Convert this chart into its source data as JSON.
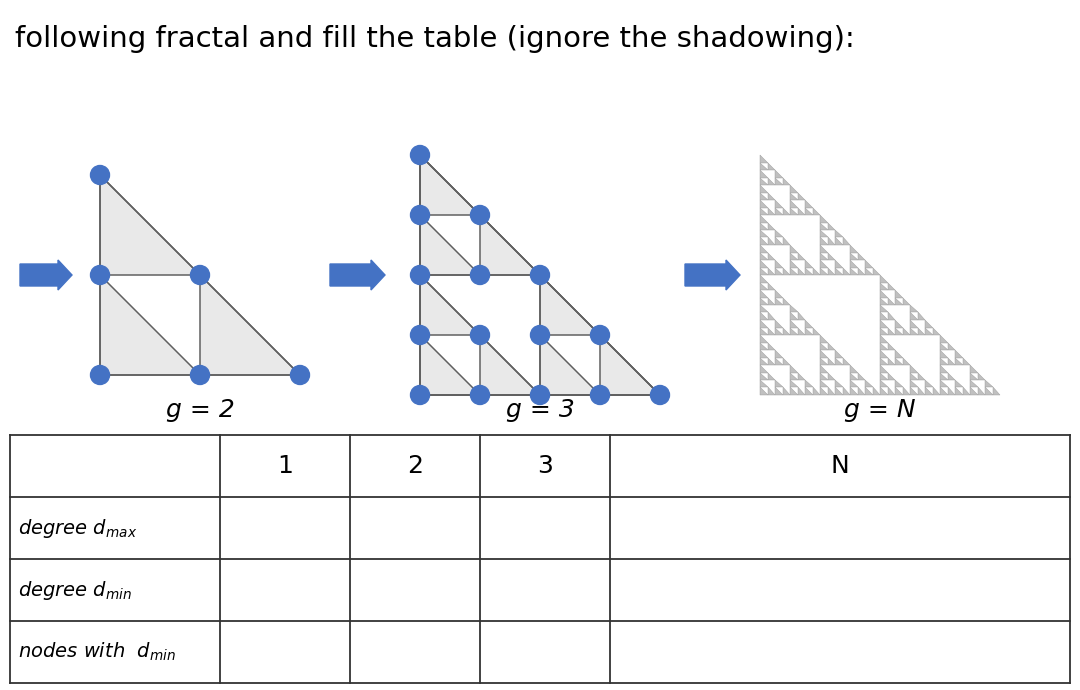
{
  "title": "following fractal and fill the table (ignore the shadowing):",
  "title_fontsize": 21,
  "title_color": "#000000",
  "background_color": "#ffffff",
  "node_color": "#4472C4",
  "edge_color": "#606060",
  "fill_color": "#e6e6e6",
  "arrow_color": "#4472C4",
  "g2_label": "g = 2",
  "g3_label": "g = 3",
  "gN_label": "g = N",
  "table_cols": [
    "",
    "1",
    "2",
    "3",
    "N"
  ],
  "label_fontsize": 18
}
